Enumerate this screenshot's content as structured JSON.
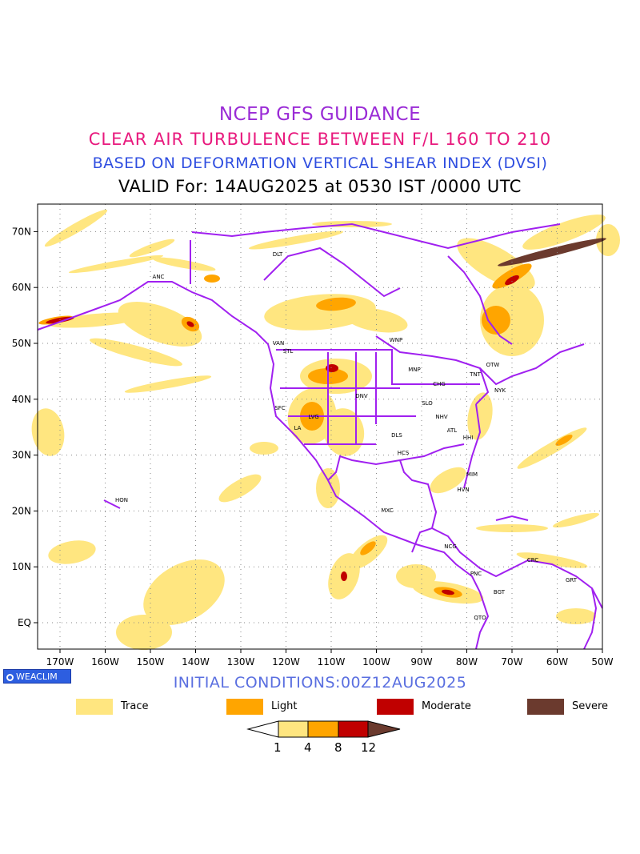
{
  "titles": {
    "line1": "NCEP GFS GUIDANCE",
    "line2": "CLEAR AIR TURBULENCE BETWEEN F/L 160 TO 210",
    "line3": "BASED ON DEFORMATION VERTICAL SHEAR INDEX (DVSI)",
    "line4": "VALID For: 14AUG2025 at 0530 IST /0000 UTC"
  },
  "map": {
    "lat_labels": [
      "70N",
      "60N",
      "50N",
      "40N",
      "30N",
      "20N",
      "10N",
      "EQ"
    ],
    "lon_labels": [
      "170W",
      "160W",
      "150W",
      "140W",
      "130W",
      "120W",
      "110W",
      "100W",
      "90W",
      "80W",
      "70W",
      "60W",
      "50W"
    ],
    "stations": [
      {
        "name": "ANC"
      },
      {
        "name": "DLT"
      },
      {
        "name": "VAN"
      },
      {
        "name": "STL"
      },
      {
        "name": "WNP"
      },
      {
        "name": "MNP"
      },
      {
        "name": "TNT"
      },
      {
        "name": "OTW"
      },
      {
        "name": "CHG"
      },
      {
        "name": "NYK"
      },
      {
        "name": "SFC"
      },
      {
        "name": "DNV"
      },
      {
        "name": "SLO"
      },
      {
        "name": "LVG"
      },
      {
        "name": "NHV"
      },
      {
        "name": "LA"
      },
      {
        "name": "ATL"
      },
      {
        "name": "HHI"
      },
      {
        "name": "DLS"
      },
      {
        "name": "HCS"
      },
      {
        "name": "MIM"
      },
      {
        "name": "HVN"
      },
      {
        "name": "HON"
      },
      {
        "name": "MXC"
      },
      {
        "name": "NCG"
      },
      {
        "name": "CRC"
      },
      {
        "name": "PNC"
      },
      {
        "name": "GRT"
      },
      {
        "name": "BGT"
      },
      {
        "name": "QTO"
      }
    ]
  },
  "logo": "WEACLIM",
  "initial_conditions": "INITIAL CONDITIONS:00Z12AUG2025",
  "legend": [
    {
      "label": "Trace",
      "color": "#ffe680"
    },
    {
      "label": "Light",
      "color": "#ffa500"
    },
    {
      "label": "Moderate",
      "color": "#c00000"
    },
    {
      "label": "Severe",
      "color": "#6b3a2e"
    }
  ],
  "colorbar": {
    "colors": [
      "#ffffff",
      "#ffe680",
      "#ffa500",
      "#c00000",
      "#6b3a2e"
    ],
    "ticks": [
      "1",
      "4",
      "8",
      "12"
    ]
  },
  "colors": {
    "boundary": "#a020f0",
    "trace": "#ffe680",
    "light": "#ffa500",
    "moderate": "#c00000",
    "severe": "#6b3a2e"
  }
}
